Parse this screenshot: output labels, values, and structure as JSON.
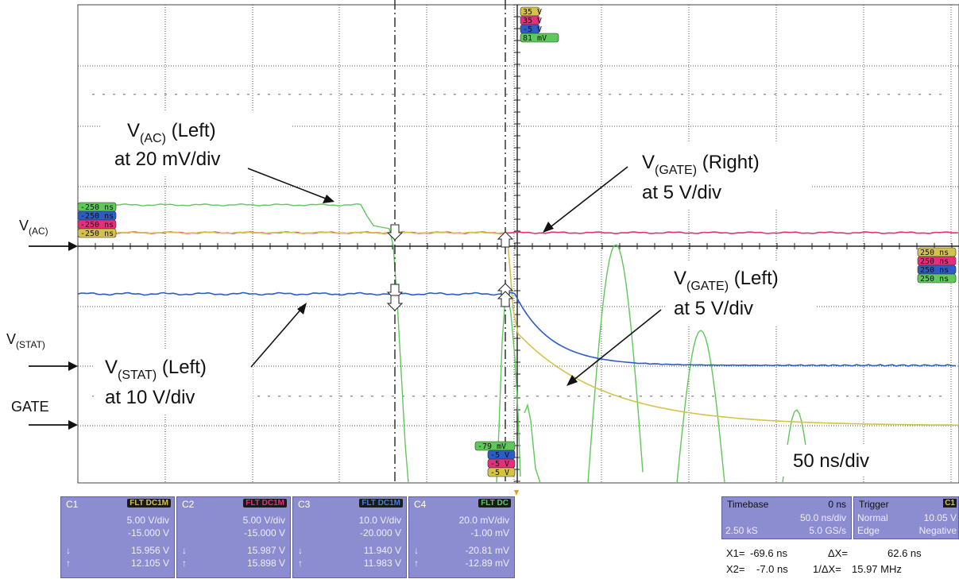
{
  "colors": {
    "ch1": "#d4c24a",
    "ch2": "#e3307a",
    "ch3": "#2b5cc7",
    "ch4": "#5ec85a",
    "panel": "#8c8cd0",
    "grid": "#9a9a9a"
  },
  "annotations": {
    "vac_label_main": "V",
    "vac_label_sub": "(AC)",
    "vac_label_rest": " (Left)",
    "vac_scale": "at 20 mV/div",
    "vgate_right_main": "V",
    "vgate_right_sub": "(GATE)",
    "vgate_right_rest": " (Right)",
    "vgate_right_scale": "at 5 V/div",
    "vgate_left_main": "V",
    "vgate_left_sub": "(GATE)",
    "vgate_left_rest": " (Left)",
    "vgate_left_scale": "at 5 V/div",
    "vstat_main": "V",
    "vstat_sub": "(STAT)",
    "vstat_rest": " (Left)",
    "vstat_scale": "at 10 V/div",
    "timebase_note": "50 ns/div"
  },
  "side_labels": {
    "vac_main": "V",
    "vac_sub": "(AC)",
    "vstat_main": "V",
    "vstat_sub": "(STAT)",
    "gate": "GATE"
  },
  "top_tags": [
    "35 V",
    "35 V",
    "-5 V",
    "81 mV"
  ],
  "left_tags": [
    "-250 ns",
    "-250 ns",
    "-250 ns",
    "-250 ns"
  ],
  "right_tags": [
    "250 ns",
    "250 ns",
    "250 ns",
    "250 ns"
  ],
  "bottom_tags": [
    "-79 mV",
    "-5 V",
    "-5 V",
    "-5 V"
  ],
  "channels": [
    {
      "name": "C1",
      "coupling": "FLT DC1M",
      "scale": "5.00 V/div",
      "offset": "-15.000 V",
      "down_val": "15.956 V",
      "up_val": "12.105 V"
    },
    {
      "name": "C2",
      "coupling": "FLT DC1M",
      "scale": "5.00 V/div",
      "offset": "-15.000 V",
      "down_val": "15.987 V",
      "up_val": "15.898 V"
    },
    {
      "name": "C3",
      "coupling": "FLT DC1M",
      "scale": "10.0 V/div",
      "offset": "-20.000 V",
      "down_val": "11.940 V",
      "up_val": "11.983 V"
    },
    {
      "name": "C4",
      "coupling": "FLT DC",
      "scale": "20.0 mV/div",
      "offset": "-1.00 mV",
      "down_val": "-20.81 mV",
      "up_val": "-12.89 mV"
    }
  ],
  "timebase": {
    "label": "Timebase",
    "delay": "0 ns",
    "per_div": "50.0 ns/div",
    "samples": "2.50 kS",
    "rate": "5.0 GS/s"
  },
  "trigger": {
    "label": "Trigger",
    "source": "C1",
    "mode": "Normal",
    "level": "10.05 V",
    "type": "Edge",
    "slope": "Negative"
  },
  "cursors": {
    "x1_label": "X1=",
    "x1": "-69.6 ns",
    "dx_label": "ΔX=",
    "dx": "62.6 ns",
    "x2_label": "X2=",
    "x2": "-7.0 ns",
    "inv_label": "1/ΔX=",
    "inv": "15.97 MHz"
  },
  "arrows": {
    "up": "↑",
    "down": "↓"
  }
}
